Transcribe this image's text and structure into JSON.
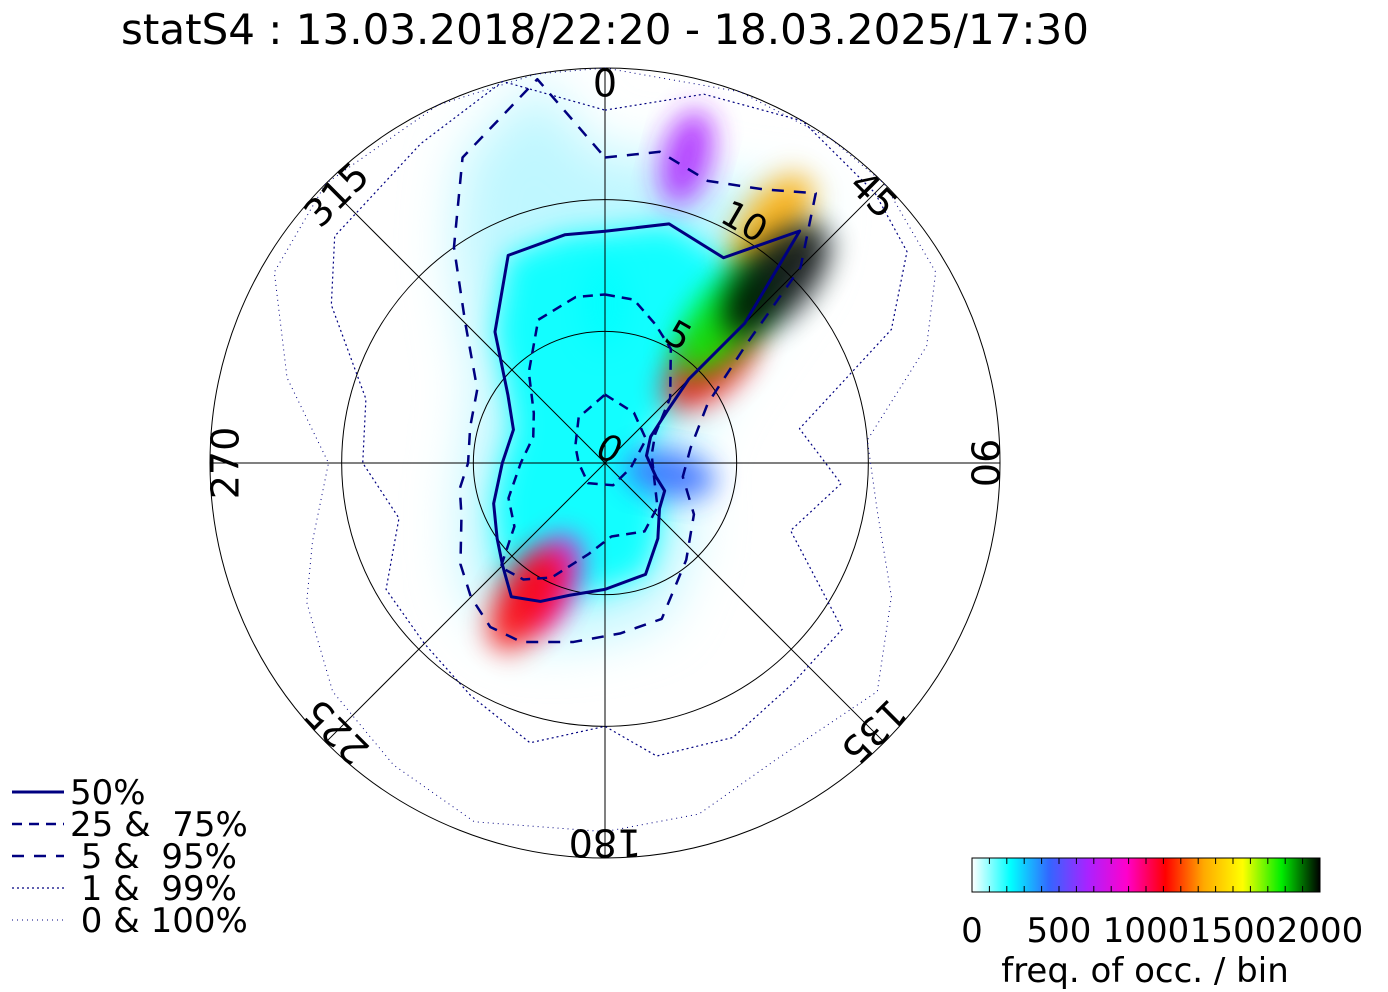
{
  "chart_data": {
    "type": "heatmap",
    "subtype": "polar-frequency-wind-rose",
    "title": "statS4 : 13.03.2018/22:20 - 18.03.2025/17:30",
    "radial_axis": {
      "range": [
        0,
        15
      ],
      "ring_values": [
        5,
        10
      ],
      "ring_labels": [
        "0",
        "5",
        "10"
      ]
    },
    "angular_axis": {
      "direction": "clockwise",
      "zero_at": "top",
      "tick_values": [
        0,
        45,
        90,
        135,
        180,
        225,
        270,
        315
      ],
      "tick_labels": [
        "0",
        "45",
        "90",
        "135",
        "180",
        "225",
        "270",
        "315"
      ]
    },
    "colorbar": {
      "range": [
        0,
        2000
      ],
      "tick_values": [
        0,
        500,
        1000,
        1500,
        2000
      ],
      "tick_labels": [
        "0",
        "500",
        "1000",
        "1500",
        "2000"
      ],
      "label": "freq. of occ. / bin",
      "colors": [
        "#ffffff",
        "#00ffff",
        "#3366ff",
        "#aa22ff",
        "#ff00cc",
        "#ff0000",
        "#ffaa00",
        "#ffff00",
        "#00ee00",
        "#000000"
      ]
    },
    "legend": {
      "position": "bottom-left",
      "entries": [
        {
          "label": "50%",
          "style": "solid"
        },
        {
          "label": "25 &  75%",
          "style": "dashed"
        },
        {
          "label": " 5 &  95%",
          "style": "dashed-sparse"
        },
        {
          "label": " 1 &  99%",
          "style": "dotted"
        },
        {
          "label": " 0 & 100%",
          "style": "dotted-sparse"
        }
      ]
    },
    "series": [
      {
        "name": "50%",
        "style": "solid",
        "color": "#000080",
        "points": [
          [
            0,
            8.8
          ],
          [
            15,
            9.4
          ],
          [
            30,
            9.0
          ],
          [
            40,
            11.5
          ],
          [
            45,
            7.5
          ],
          [
            45,
            4.5
          ],
          [
            50,
            3.1
          ],
          [
            60,
            2.0
          ],
          [
            80,
            1.6
          ],
          [
            105,
            2.0
          ],
          [
            115,
            2.5
          ],
          [
            130,
            2.7
          ],
          [
            145,
            3.5
          ],
          [
            160,
            4.5
          ],
          [
            180,
            4.8
          ],
          [
            195,
            5.2
          ],
          [
            205,
            5.8
          ],
          [
            215,
            6.2
          ],
          [
            225,
            5.5
          ],
          [
            235,
            5.0
          ],
          [
            250,
            4.5
          ],
          [
            270,
            3.9
          ],
          [
            290,
            3.7
          ],
          [
            305,
            4.5
          ],
          [
            320,
            6.5
          ],
          [
            335,
            8.7
          ],
          [
            350,
            8.8
          ]
        ]
      },
      {
        "name": "25 &  75%",
        "style": "dashed",
        "color": "#000080",
        "points": [
          [
            0,
            6.4
          ],
          [
            10,
            6.3
          ],
          [
            20,
            5.6
          ],
          [
            30,
            5.0
          ],
          [
            45,
            3.5
          ],
          [
            60,
            2.2
          ],
          [
            80,
            1.8
          ],
          [
            110,
            2.0
          ],
          [
            130,
            2.6
          ],
          [
            150,
            3.0
          ],
          [
            175,
            2.8
          ],
          [
            190,
            3.5
          ],
          [
            205,
            4.8
          ],
          [
            215,
            5.4
          ],
          [
            225,
            5.6
          ],
          [
            235,
            4.2
          ],
          [
            250,
            3.9
          ],
          [
            270,
            3.2
          ],
          [
            290,
            2.9
          ],
          [
            305,
            3.3
          ],
          [
            320,
            4.5
          ],
          [
            335,
            6.0
          ],
          [
            350,
            6.4
          ]
        ],
        "inner_loop": [
          [
            0,
            2.6
          ],
          [
            30,
            2.2
          ],
          [
            60,
            1.8
          ],
          [
            100,
            1.0
          ],
          [
            160,
            0.9
          ],
          [
            220,
            1.0
          ],
          [
            270,
            1.0
          ],
          [
            300,
            1.3
          ],
          [
            330,
            2.0
          ]
        ]
      },
      {
        "name": " 5 &  95%",
        "style": "dashed-sparse",
        "color": "#000080",
        "points": [
          [
            0,
            11.6
          ],
          [
            10,
            12.0
          ],
          [
            20,
            11.4
          ],
          [
            30,
            12.0
          ],
          [
            38,
            13.0
          ],
          [
            45,
            10.5
          ],
          [
            50,
            7.0
          ],
          [
            60,
            4.5
          ],
          [
            80,
            3.3
          ],
          [
            100,
            3.0
          ],
          [
            120,
            3.9
          ],
          [
            140,
            4.8
          ],
          [
            160,
            6.3
          ],
          [
            175,
            6.5
          ],
          [
            190,
            6.9
          ],
          [
            205,
            7.5
          ],
          [
            215,
            7.6
          ],
          [
            225,
            7.2
          ],
          [
            235,
            6.7
          ],
          [
            250,
            5.8
          ],
          [
            260,
            5.6
          ],
          [
            270,
            5.2
          ],
          [
            285,
            5.3
          ],
          [
            300,
            5.6
          ],
          [
            315,
            7.5
          ],
          [
            325,
            10.0
          ],
          [
            335,
            12.8
          ],
          [
            350,
            14.8
          ]
        ]
      },
      {
        "name": " 1 &  99%",
        "style": "dotted",
        "color": "#000080",
        "points": [
          [
            0,
            13.4
          ],
          [
            15,
            14.5
          ],
          [
            30,
            15.0
          ],
          [
            45,
            14.5
          ],
          [
            55,
            14.0
          ],
          [
            65,
            12.0
          ],
          [
            80,
            7.5
          ],
          [
            95,
            9.0
          ],
          [
            110,
            7.5
          ],
          [
            125,
            11.0
          ],
          [
            140,
            11.0
          ],
          [
            155,
            11.5
          ],
          [
            170,
            11.3
          ],
          [
            180,
            10.0
          ],
          [
            195,
            11.0
          ],
          [
            210,
            10.2
          ],
          [
            225,
            9.7
          ],
          [
            240,
            9.6
          ],
          [
            255,
            8.1
          ],
          [
            270,
            9.2
          ],
          [
            285,
            9.4
          ],
          [
            300,
            12.0
          ],
          [
            310,
            13.4
          ],
          [
            330,
            14.0
          ],
          [
            345,
            15.0
          ]
        ]
      },
      {
        "name": " 0 & 100%",
        "style": "dotted-sparse",
        "color": "#000080",
        "points": [
          [
            0,
            15.0
          ],
          [
            20,
            15.0
          ],
          [
            35,
            15.0
          ],
          [
            45,
            15.0
          ],
          [
            60,
            14.5
          ],
          [
            70,
            13.0
          ],
          [
            85,
            10.0
          ],
          [
            100,
            10.5
          ],
          [
            115,
            12.0
          ],
          [
            130,
            13.5
          ],
          [
            150,
            13.0
          ],
          [
            165,
            13.8
          ],
          [
            180,
            14.0
          ],
          [
            200,
            14.5
          ],
          [
            215,
            14.0
          ],
          [
            230,
            13.5
          ],
          [
            245,
            12.5
          ],
          [
            255,
            11.5
          ],
          [
            270,
            10.5
          ],
          [
            285,
            12.5
          ],
          [
            300,
            14.5
          ],
          [
            315,
            15.0
          ],
          [
            335,
            15.0
          ],
          [
            350,
            15.0
          ]
        ]
      }
    ],
    "density_hotspots": [
      {
        "angle": 43,
        "radius": 9.5,
        "value": 2000
      },
      {
        "angle": 40,
        "radius": 7.0,
        "value": 1700
      },
      {
        "angle": 35,
        "radius": 11.0,
        "value": 1300
      },
      {
        "angle": 47,
        "radius": 5.5,
        "value": 1200
      },
      {
        "angle": 210,
        "radius": 6.0,
        "value": 1100
      },
      {
        "angle": 205,
        "radius": 5.0,
        "value": 800
      },
      {
        "angle": 15,
        "radius": 12.0,
        "value": 650
      },
      {
        "angle": 0,
        "radius": 6.0,
        "value": 300
      },
      {
        "angle": 100,
        "radius": 2.5,
        "value": 450
      }
    ]
  }
}
